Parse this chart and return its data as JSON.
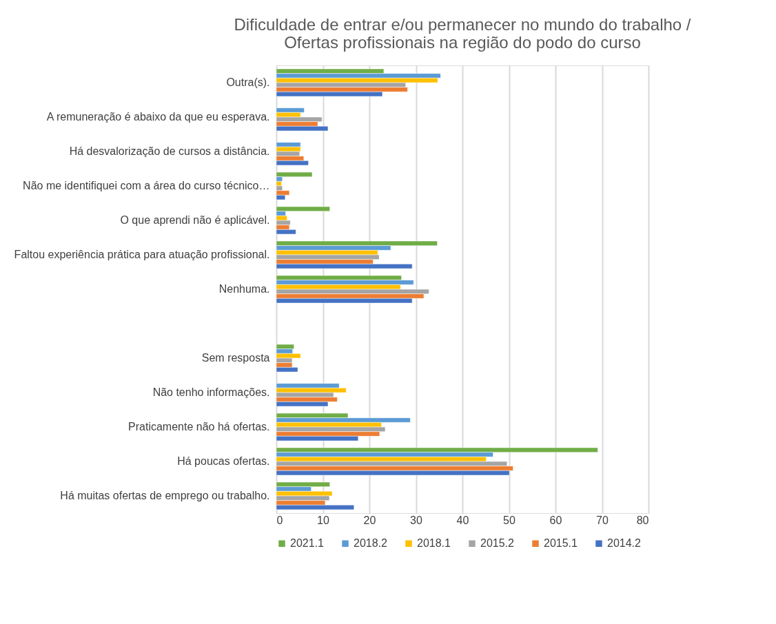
{
  "chart_data": {
    "type": "bar",
    "orientation": "horizontal",
    "title": "Dificuldade de entrar e/ou permanecer no mundo do trabalho /\nOfertas profissionais na região do podo do curso",
    "categories": [
      "Outra(s).",
      "A remuneração é abaixo da que eu esperava.",
      "Há desvalorização de cursos a distância.",
      "Não me identifiquei com a área do curso técnico…",
      "O que aprendi não é aplicável.",
      "Faltou experiência prática para atuação profissional.",
      "Nenhuma.",
      null,
      "Sem resposta",
      "Não tenho informações.",
      "Praticamente não há ofertas.",
      "Há poucas ofertas.",
      "Há muitas ofertas de emprego ou trabalho."
    ],
    "series": [
      {
        "name": "2021.1",
        "color": "#70ad47",
        "values": [
          23.1,
          null,
          null,
          7.7,
          11.5,
          34.6,
          26.9,
          null,
          3.8,
          null,
          15.4,
          69.1,
          11.5
        ]
      },
      {
        "name": "2018.2",
        "color": "#5b9bd5",
        "values": [
          35.3,
          6.0,
          5.2,
          1.3,
          2.0,
          24.6,
          29.5,
          null,
          3.5,
          13.5,
          28.8,
          46.6,
          7.5
        ]
      },
      {
        "name": "2018.1",
        "color": "#ffc000",
        "values": [
          34.7,
          5.2,
          5.2,
          1.1,
          2.3,
          21.8,
          26.7,
          null,
          5.2,
          15.0,
          22.6,
          45.1,
          12.0
        ]
      },
      {
        "name": "2015.2",
        "color": "#a5a5a5",
        "values": [
          27.8,
          9.8,
          5.0,
          1.3,
          3.0,
          22.1,
          32.8,
          null,
          3.4,
          12.3,
          23.4,
          49.6,
          11.4
        ]
      },
      {
        "name": "2015.1",
        "color": "#ed7d31",
        "values": [
          28.2,
          8.9,
          5.9,
          2.8,
          2.8,
          20.8,
          31.7,
          null,
          3.4,
          13.1,
          22.2,
          50.9,
          10.5
        ]
      },
      {
        "name": "2014.2",
        "color": "#4472c4",
        "values": [
          22.8,
          11.1,
          6.9,
          1.9,
          4.2,
          29.2,
          29.2,
          null,
          4.6,
          11.1,
          17.6,
          50.1,
          16.7
        ]
      }
    ],
    "xlim": [
      0,
      80
    ],
    "xticks": [
      0,
      10,
      20,
      30,
      40,
      50,
      60,
      70,
      80
    ],
    "grid": "x",
    "legend": "bottom"
  }
}
